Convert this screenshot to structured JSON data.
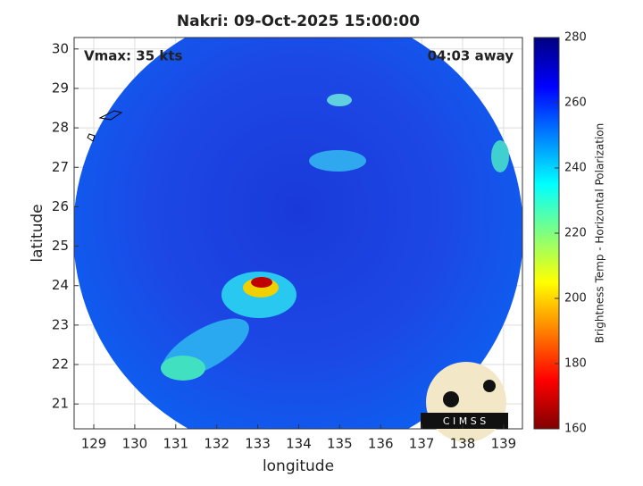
{
  "chart_data": {
    "type": "map",
    "title": "Nakri: 09-Oct-2025 15:00:00",
    "annotations": [
      "Vmax: 35 kts",
      "04:03 away"
    ],
    "xlabel": "longitude",
    "ylabel": "latitude",
    "xlim": [
      128.52,
      139.46
    ],
    "xticks": [
      129,
      130,
      131,
      132,
      133,
      134,
      135,
      136,
      137,
      138,
      139
    ],
    "ylim": [
      20.37,
      30.29
    ],
    "yticks": [
      21,
      22,
      23,
      24,
      25,
      26,
      27,
      28,
      29,
      30
    ],
    "grid": true,
    "colorbar": {
      "label": "Brightness Temp - Horizontal Polarization",
      "lim": [
        160,
        280
      ],
      "ticks": [
        160,
        180,
        200,
        220,
        240,
        260,
        280
      ],
      "colors": [
        "#800000",
        "#ff0000",
        "#ff8000",
        "#ffff00",
        "#80ff80",
        "#00ffff",
        "#0080ff",
        "#0000ff",
        "#000080"
      ]
    },
    "logo": "C I M S S"
  }
}
